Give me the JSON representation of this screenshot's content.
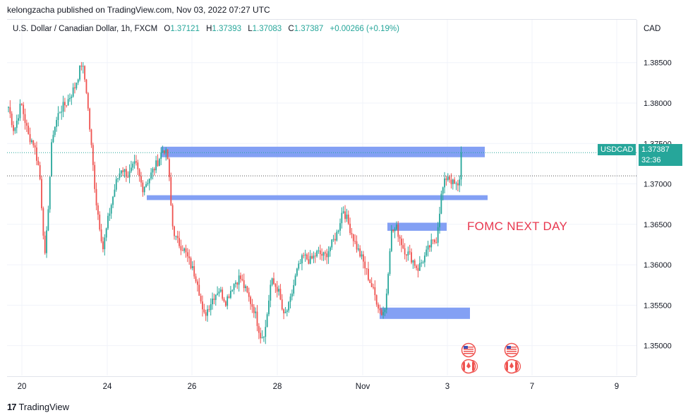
{
  "publish_line": {
    "author": "kelongzacha",
    "text": "kelongzacha published on TradingView.com, Nov 03, 2022 07:27 UTC"
  },
  "legend": {
    "symbol": "U.S. Dollar / Canadian Dollar, 1h, FXCM",
    "open_label": "O",
    "open": "1.37121",
    "high_label": "H",
    "high": "1.37393",
    "low_label": "L",
    "low": "1.37083",
    "close_label": "C",
    "close": "1.37387",
    "change": "+0.00266 (+0.19%)"
  },
  "currency": "CAD",
  "price_tag": {
    "symbol": "USDCAD",
    "price": "1.37387",
    "countdown": "32:36"
  },
  "annotation": "FOMC NEXT DAY",
  "branding": {
    "logo_text": "TradingView",
    "logo_mark": "17"
  },
  "colors": {
    "up": "#26a69a",
    "down": "#ef5350",
    "zone": "#6d8ff2",
    "tag": "#26a69a",
    "annotation": "#e8384f",
    "grid": "#f0f3fa",
    "axis_text": "#131722"
  },
  "events": [
    {
      "day": "Nov 3",
      "icons": [
        "us-flag-icon",
        "canada-flag-icon"
      ]
    },
    {
      "day": "Nov 6",
      "icons": [
        "us-flag-icon",
        "canada-flag-icon"
      ]
    }
  ],
  "chart_data": {
    "type": "candlestick",
    "x_label": "",
    "y_label": "",
    "y_range": [
      1.3463,
      1.3903
    ],
    "y_ticks": [
      "1.38500",
      "1.38000",
      "1.37500",
      "1.37000",
      "1.36500",
      "1.36000",
      "1.35500",
      "1.35000"
    ],
    "x_ticks": [
      "20",
      "24",
      "26",
      "28",
      "Nov",
      "3",
      "7",
      "9"
    ],
    "grid": true,
    "current_price": 1.37387,
    "reference_price": 1.371,
    "zones": [
      {
        "y_low": 1.3733,
        "y_high": 1.3746,
        "start": "Oct 25 ~04:00",
        "end": "Nov 4 ~06:00"
      },
      {
        "y_low": 1.368,
        "y_high": 1.3686,
        "start": "Oct 24 ~20:00",
        "end": "Nov 4 ~12:00"
      },
      {
        "y_low": 1.3642,
        "y_high": 1.3652,
        "start": "Nov 1 ~10:00",
        "end": "Nov 3 ~00:00"
      },
      {
        "y_low": 1.3533,
        "y_high": 1.3547,
        "start": "Nov 1 ~00:00",
        "end": "Nov 4 ~00:00"
      }
    ],
    "path_anchors": [
      [
        0,
        1.3795
      ],
      [
        8,
        1.3765
      ],
      [
        18,
        1.38
      ],
      [
        28,
        1.376
      ],
      [
        36,
        1.375
      ],
      [
        44,
        1.3715
      ],
      [
        52,
        1.3605
      ],
      [
        62,
        1.376
      ],
      [
        72,
        1.379
      ],
      [
        82,
        1.38
      ],
      [
        94,
        1.382
      ],
      [
        104,
        1.385
      ],
      [
        110,
        1.382
      ],
      [
        116,
        1.376
      ],
      [
        124,
        1.368
      ],
      [
        134,
        1.362
      ],
      [
        142,
        1.366
      ],
      [
        152,
        1.37
      ],
      [
        160,
        1.372
      ],
      [
        170,
        1.371
      ],
      [
        180,
        1.3725
      ],
      [
        190,
        1.3695
      ],
      [
        198,
        1.3705
      ],
      [
        210,
        1.3725
      ],
      [
        220,
        1.3745
      ],
      [
        226,
        1.373
      ],
      [
        232,
        1.365
      ],
      [
        238,
        1.363
      ],
      [
        248,
        1.362
      ],
      [
        258,
        1.36
      ],
      [
        268,
        1.358
      ],
      [
        276,
        1.3535
      ],
      [
        282,
        1.3545
      ],
      [
        290,
        1.356
      ],
      [
        298,
        1.357
      ],
      [
        308,
        1.3555
      ],
      [
        318,
        1.3575
      ],
      [
        328,
        1.3585
      ],
      [
        340,
        1.356
      ],
      [
        348,
        1.3545
      ],
      [
        358,
        1.351
      ],
      [
        364,
        1.352
      ],
      [
        372,
        1.358
      ],
      [
        382,
        1.357
      ],
      [
        390,
        1.3535
      ],
      [
        398,
        1.355
      ],
      [
        408,
        1.359
      ],
      [
        418,
        1.361
      ],
      [
        428,
        1.3605
      ],
      [
        438,
        1.3615
      ],
      [
        448,
        1.361
      ],
      [
        458,
        1.3625
      ],
      [
        466,
        1.364
      ],
      [
        474,
        1.367
      ],
      [
        482,
        1.365
      ],
      [
        492,
        1.3625
      ],
      [
        502,
        1.3605
      ],
      [
        512,
        1.358
      ],
      [
        520,
        1.356
      ],
      [
        528,
        1.354
      ],
      [
        534,
        1.3545
      ],
      [
        542,
        1.364
      ],
      [
        550,
        1.3645
      ],
      [
        560,
        1.362
      ],
      [
        570,
        1.361
      ],
      [
        580,
        1.3595
      ],
      [
        590,
        1.361
      ],
      [
        598,
        1.3625
      ],
      [
        606,
        1.363
      ],
      [
        614,
        1.369
      ],
      [
        622,
        1.3712
      ],
      [
        630,
        1.37
      ],
      [
        638,
        1.3695
      ],
      [
        642,
        1.37387
      ]
    ]
  }
}
